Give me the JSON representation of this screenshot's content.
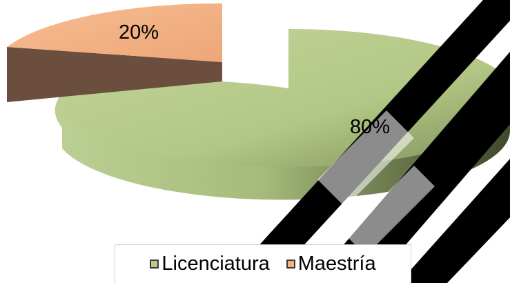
{
  "chart_data": {
    "type": "pie",
    "title": "",
    "categories": [
      "Licenciatura",
      "Maestría"
    ],
    "values": [
      80,
      20
    ],
    "labels": [
      "80%",
      "20%"
    ],
    "colors": {
      "Licenciatura": "#b8cc8c",
      "Maestría": "#f4b183"
    },
    "style": "3d-exploded",
    "legend": "bottom"
  },
  "watermark": {
    "color": "#000000",
    "description_icon": "diagonal-watermark-icon"
  }
}
